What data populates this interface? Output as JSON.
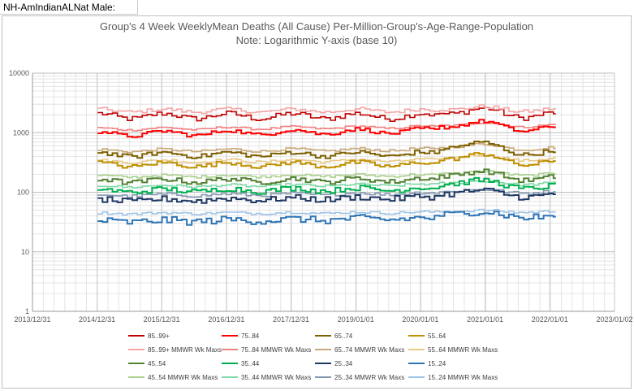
{
  "sheet_label": "NH-AmIndianALNat Male:",
  "chart_data": {
    "type": "line",
    "title": "Group's 4 Week WeeklyMean Deaths (All Cause) Per-Million-Group's-Age-Range-Population",
    "subtitle": "Note: Logarithmic Y-axis (base 10)",
    "xlabel": "",
    "ylabel": "",
    "y_scale": "log10",
    "ylim": [
      1,
      10000
    ],
    "y_tick_labels": [
      "1",
      "10",
      "100",
      "1000",
      "10000"
    ],
    "x_range": [
      "2013-12-31",
      "2023-01-02"
    ],
    "x_tick_labels": [
      "2013/12/31",
      "2014/12/31",
      "2015/12/31",
      "2016/12/31",
      "2017/12/31",
      "2019/01/01",
      "2020/01/01",
      "2021/01/01",
      "2022/01/01",
      "2023/01/02"
    ],
    "x_tick_dates": [
      "2013-12-31",
      "2014-12-31",
      "2015-12-31",
      "2016-12-31",
      "2017-12-31",
      "2019-01-01",
      "2020-01-01",
      "2021-01-01",
      "2022-01-01",
      "2023-01-02"
    ],
    "data_x_range": [
      "2015-01-03",
      "2022-02-05"
    ],
    "grid": true,
    "legend_position": "bottom",
    "series": [
      {
        "name": "85..99+",
        "color": "#c00000",
        "base": 1900,
        "amplitude": 0.09,
        "noise": 0.09,
        "trend": 0.0,
        "covid": 0.2,
        "band": "max"
      },
      {
        "name": "75..84",
        "color": "#ff0000",
        "base": 950,
        "amplitude": 0.08,
        "noise": 0.06,
        "trend": 0.15,
        "covid": 0.25,
        "band": "mean"
      },
      {
        "name": "65..74",
        "color": "#7f6000",
        "base": 430,
        "amplitude": 0.07,
        "noise": 0.07,
        "trend": 0.02,
        "covid": 0.35,
        "band": "mean"
      },
      {
        "name": "55..64",
        "color": "#bf9000",
        "base": 290,
        "amplitude": 0.07,
        "noise": 0.07,
        "trend": 0.02,
        "covid": 0.3,
        "band": "mean"
      },
      {
        "name": "85..99+ MMWR Wk Maxs",
        "color": "#f4a6a6",
        "base": 2350,
        "amplitude": 0.05,
        "noise": 0.06,
        "trend": 0.0,
        "covid": 0.1,
        "band": "max"
      },
      {
        "name": "75..84 MMWR Wk Maxs",
        "color": "#f08080",
        "base": 1150,
        "amplitude": 0.04,
        "noise": 0.03,
        "trend": 0.1,
        "covid": 0.1,
        "band": "max"
      },
      {
        "name": "65..74 MMWR Wk Maxs",
        "color": "#c9a97a",
        "base": 500,
        "amplitude": 0.04,
        "noise": 0.04,
        "trend": 0.05,
        "covid": 0.15,
        "band": "max"
      },
      {
        "name": "55..64 MMWR Wk Maxs",
        "color": "#e8c98a",
        "base": 330,
        "amplitude": 0.04,
        "noise": 0.04,
        "trend": 0.05,
        "covid": 0.15,
        "band": "max"
      },
      {
        "name": "45..54",
        "color": "#548235",
        "base": 155,
        "amplitude": 0.06,
        "noise": 0.08,
        "trend": 0.05,
        "covid": 0.25,
        "band": "mean"
      },
      {
        "name": "35..44",
        "color": "#00b050",
        "base": 105,
        "amplitude": 0.05,
        "noise": 0.09,
        "trend": 0.1,
        "covid": 0.25,
        "band": "mean"
      },
      {
        "name": "25..34",
        "color": "#1f3864",
        "base": 72,
        "amplitude": 0.04,
        "noise": 0.1,
        "trend": 0.15,
        "covid": 0.2,
        "band": "mean"
      },
      {
        "name": "15..24",
        "color": "#2e75b6",
        "base": 32,
        "amplitude": 0.03,
        "noise": 0.12,
        "trend": 0.15,
        "covid": 0.2,
        "band": "mean"
      },
      {
        "name": "45..54 MMWR Wk Maxs",
        "color": "#a9d18e",
        "base": 185,
        "amplitude": 0.03,
        "noise": 0.04,
        "trend": 0.05,
        "covid": 0.1,
        "band": "max"
      },
      {
        "name": "35..44 MMWR Wk Maxs",
        "color": "#7fd8a6",
        "base": 125,
        "amplitude": 0.03,
        "noise": 0.04,
        "trend": 0.08,
        "covid": 0.1,
        "band": "max"
      },
      {
        "name": "25..34 MMWR Wk Maxs",
        "color": "#8497b0",
        "base": 88,
        "amplitude": 0.03,
        "noise": 0.05,
        "trend": 0.1,
        "covid": 0.1,
        "band": "max"
      },
      {
        "name": "15..24 MMWR Wk Maxs",
        "color": "#9dc3e6",
        "base": 44,
        "amplitude": 0.02,
        "noise": 0.04,
        "trend": 0.05,
        "covid": 0.05,
        "band": "max"
      }
    ]
  }
}
